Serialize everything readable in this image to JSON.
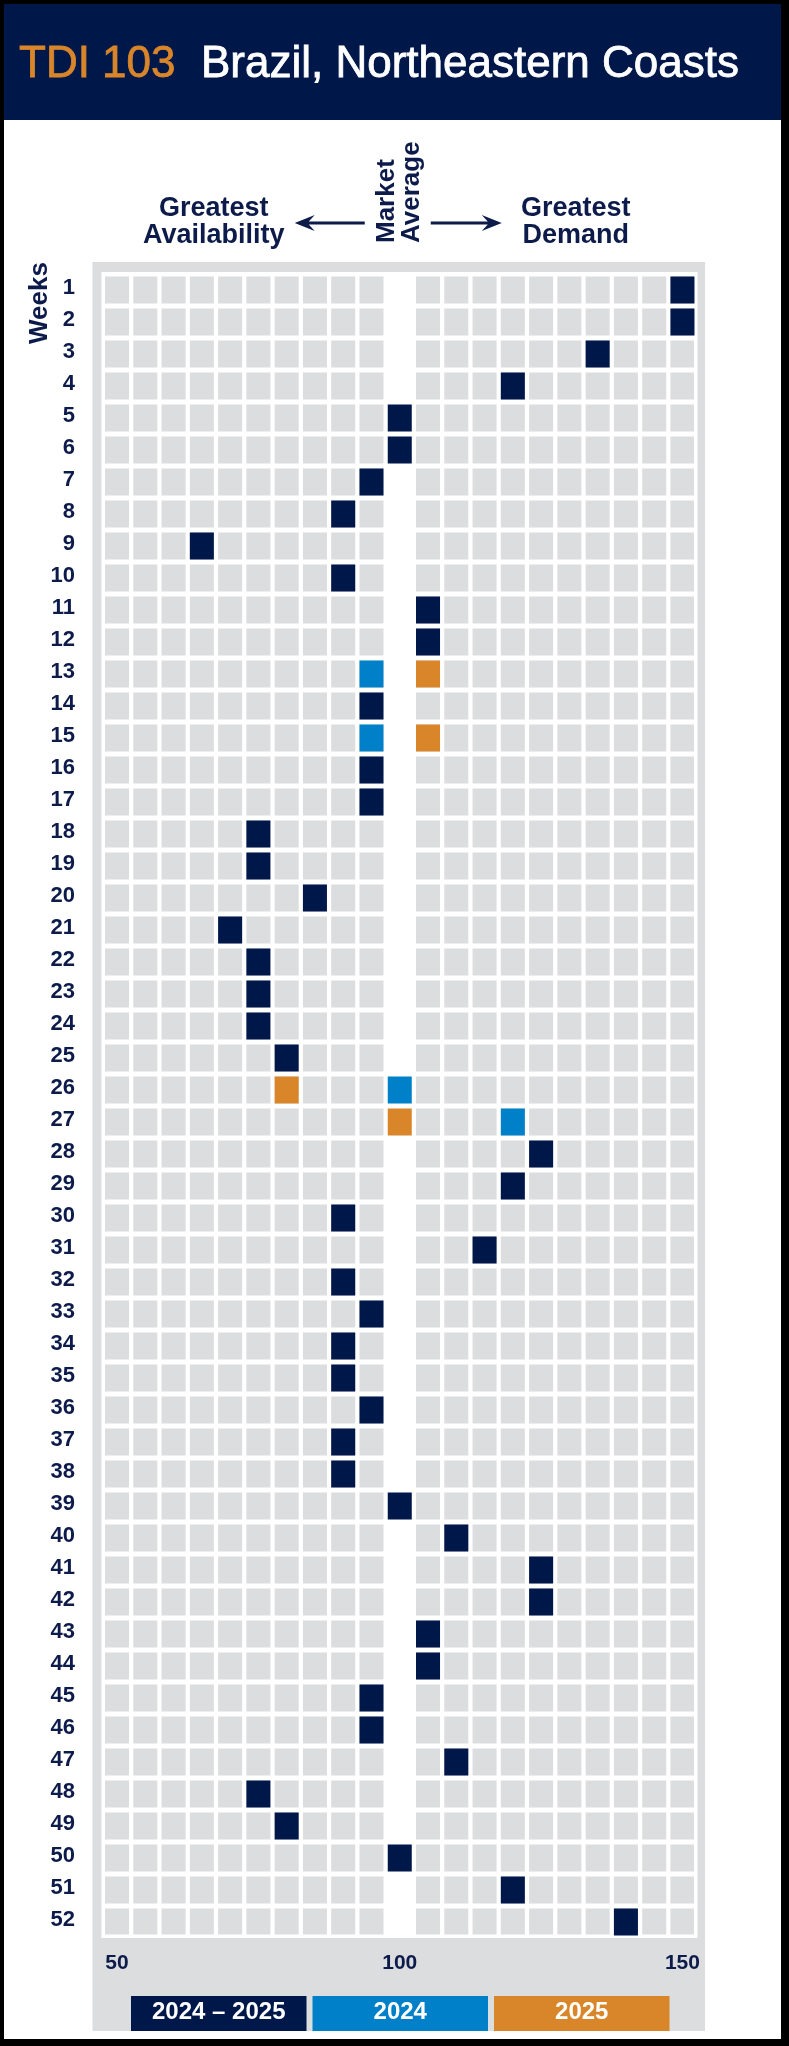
{
  "chart_data": {
    "type": "scatter",
    "orientation": "horizontal",
    "title": "TDI 103",
    "subtitle": "Brazil, Northeastern Coasts",
    "ylabel": "Weeks",
    "annotations": [
      "Greatest Availability",
      "Market Average",
      "Greatest Demand"
    ],
    "categories": [
      "1",
      "2",
      "3",
      "4",
      "5",
      "6",
      "7",
      "8",
      "9",
      "10",
      "11",
      "12",
      "13",
      "14",
      "15",
      "16",
      "17",
      "18",
      "19",
      "20",
      "21",
      "22",
      "23",
      "24",
      "25",
      "26",
      "27",
      "28",
      "29",
      "30",
      "31",
      "32",
      "33",
      "34",
      "35",
      "36",
      "37",
      "38",
      "39",
      "40",
      "41",
      "42",
      "43",
      "44",
      "45",
      "46",
      "47",
      "48",
      "49",
      "50",
      "51",
      "52"
    ],
    "series": [
      {
        "name": "2024 – 2025",
        "color": "#00174a",
        "values": [
          150,
          150,
          135,
          120,
          100,
          100,
          95,
          90,
          65,
          90,
          105,
          105,
          null,
          95,
          null,
          95,
          95,
          75,
          75,
          85,
          70,
          75,
          75,
          75,
          80,
          null,
          null,
          125,
          120,
          90,
          115,
          90,
          95,
          90,
          90,
          95,
          90,
          90,
          100,
          110,
          125,
          125,
          105,
          105,
          95,
          95,
          110,
          75,
          80,
          100,
          120,
          140
        ]
      },
      {
        "name": "2024",
        "color": "#0080c8",
        "values": [
          null,
          null,
          null,
          null,
          null,
          null,
          null,
          null,
          null,
          null,
          null,
          null,
          95,
          null,
          95,
          null,
          null,
          null,
          null,
          null,
          null,
          null,
          null,
          null,
          null,
          100,
          120,
          null,
          null,
          null,
          null,
          null,
          null,
          null,
          null,
          null,
          null,
          null,
          null,
          null,
          null,
          null,
          null,
          null,
          null,
          null,
          null,
          null,
          null,
          null,
          null,
          null
        ]
      },
      {
        "name": "2025",
        "color": "#d9862b",
        "values": [
          null,
          null,
          null,
          null,
          null,
          null,
          null,
          null,
          null,
          null,
          null,
          null,
          105,
          null,
          105,
          null,
          null,
          null,
          null,
          null,
          null,
          null,
          null,
          null,
          null,
          80,
          100,
          null,
          null,
          null,
          null,
          null,
          null,
          null,
          null,
          null,
          null,
          null,
          null,
          null,
          null,
          null,
          null,
          null,
          null,
          null,
          null,
          null,
          null,
          null,
          null,
          null
        ]
      }
    ],
    "xlim": [
      47.5,
      152.5
    ],
    "xticks": [
      50,
      {
        "value": 52.5,
        "label": null
      },
      {
        "value": 57.5,
        "label": null
      },
      {
        "value": 62.5,
        "label": null
      },
      {
        "value": 67.5,
        "label": null
      },
      {
        "value": 72.5,
        "label": null
      },
      {
        "value": 77.5,
        "label": null
      },
      {
        "value": 82.5,
        "label": null
      },
      {
        "value": 87.5,
        "label": null
      },
      {
        "value": 92.5,
        "label": null
      },
      {
        "value": 97.5,
        "label": null
      },
      100,
      {
        "value": 102.5,
        "label": null
      },
      {
        "value": 107.5,
        "label": null
      },
      {
        "value": 112.5,
        "label": null
      },
      {
        "value": 117.5,
        "label": null
      },
      {
        "value": 122.5,
        "label": null
      },
      {
        "value": 127.5,
        "label": null
      },
      {
        "value": 132.5,
        "label": null
      },
      {
        "value": 137.5,
        "label": null
      },
      {
        "value": 142.5,
        "label": null
      },
      {
        "value": 147.5,
        "label": null
      },
      150
    ],
    "bands": [
      {
        "axis": "x",
        "from": 97.5,
        "to": 102.5,
        "color": "#ffffff"
      }
    ],
    "grid": true,
    "legend": "bottom",
    "marker": "square"
  }
}
